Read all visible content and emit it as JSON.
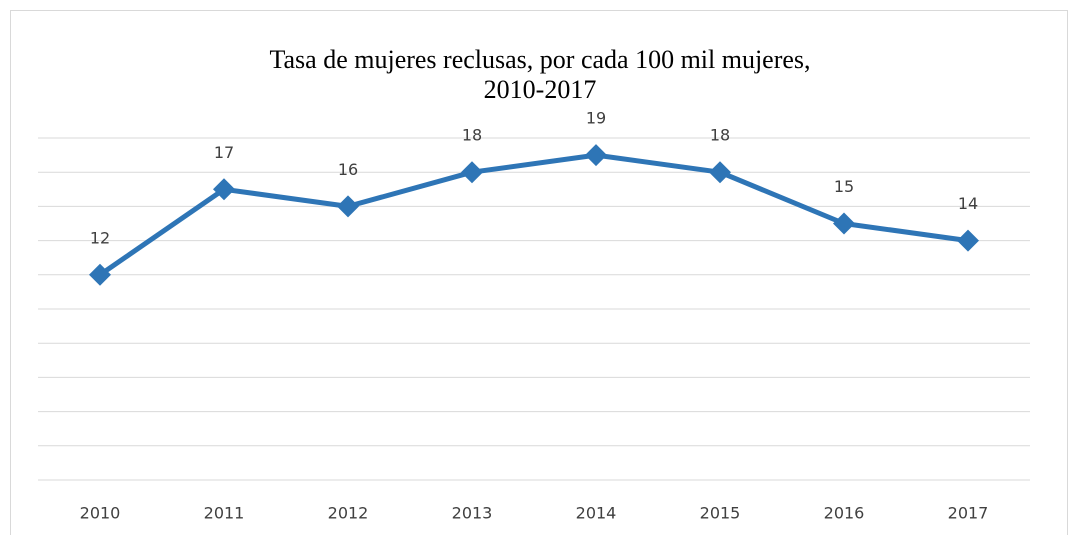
{
  "chart_data": {
    "type": "line",
    "title": [
      "Tasa de mujeres reclusas, por cada 100 mil mujeres,",
      "2010-2017"
    ],
    "categories": [
      "2010",
      "2011",
      "2012",
      "2013",
      "2014",
      "2015",
      "2016",
      "2017"
    ],
    "series": [
      {
        "name": "Tasa",
        "color": "#2e75b6",
        "values": [
          12,
          17,
          16,
          18,
          19,
          18,
          15,
          14
        ]
      }
    ],
    "ylim": [
      0,
      20
    ],
    "yticks": [
      0,
      2,
      4,
      6,
      8,
      10,
      12,
      14,
      16,
      18,
      20
    ],
    "grid": true
  }
}
